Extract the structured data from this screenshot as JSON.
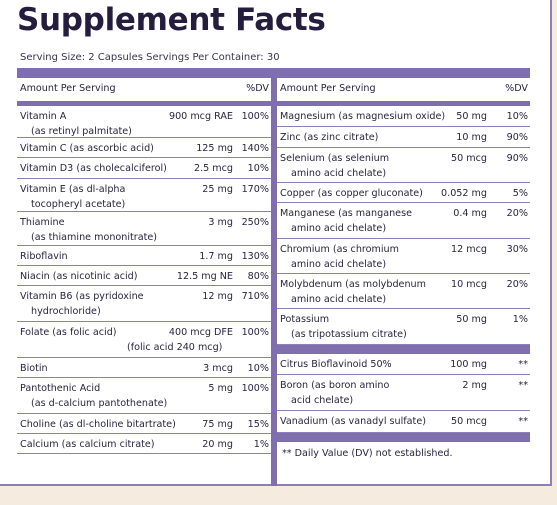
{
  "title": "Supplement Facts",
  "serving": "Serving Size: 2 Capsules    Servings Per Container: 30",
  "header": {
    "amount": "Amount Per Serving",
    "dv": "%DV"
  },
  "left": [
    {
      "name": "Vitamin A",
      "amount": "900 mcg RAE",
      "dv": "100%",
      "sub": "(as retinyl palmitate)",
      "h": 32
    },
    {
      "name": "Vitamin C (as ascorbic acid)",
      "amount": "125 mg",
      "dv": "140%",
      "h": 20
    },
    {
      "name": "Vitamin D3 (as cholecalciferol)",
      "amount": "2.5 mcg",
      "dv": "10%",
      "h": 21
    },
    {
      "name": "Vitamin E (as dl-alpha",
      "amount": "25 mg",
      "dv": "170%",
      "sub": "tocopheryl acetate)",
      "h": 33
    },
    {
      "name": "Thiamine",
      "amount": "3 mg",
      "dv": "250%",
      "sub": "(as thiamine mononitrate)",
      "h": 34
    },
    {
      "name": "Riboflavin",
      "amount": "1.7 mg",
      "dv": "130%",
      "h": 20
    },
    {
      "name": "Niacin (as nicotinic acid)",
      "amount": "12.5 mg NE",
      "dv": "80%",
      "h": 20
    },
    {
      "name": "Vitamin B6 (as pyridoxine",
      "amount": "12 mg",
      "dv": "710%",
      "sub": "hydrochloride)",
      "h": 36
    },
    {
      "name": "Folate (as folic acid)",
      "amount": "400 mcg DFE",
      "dv": "100%",
      "sub": "(folic acid 240 mcg)",
      "subIndent": "far",
      "h": 36
    },
    {
      "name": "Biotin",
      "amount": "3 mcg",
      "dv": "10%",
      "h": 20
    },
    {
      "name": "Pantothenic Acid",
      "amount": "5 mg",
      "dv": "100%",
      "sub": "(as d-calcium pantothenate)",
      "h": 36
    },
    {
      "name": "Choline (as dl-choline bitartrate)",
      "amount": "75 mg",
      "dv": "15%",
      "h": 20
    },
    {
      "name": "Calcium (as calcium citrate)",
      "amount": "20 mg",
      "dv": "1%",
      "h": 20
    }
  ],
  "right": [
    {
      "name": "Magnesium (as magnesium oxide)",
      "amount": "50 mg",
      "dv": "10%",
      "h": 21
    },
    {
      "name": "Zinc (as zinc citrate)",
      "amount": "10 mg",
      "dv": "90%",
      "h": 21
    },
    {
      "name": "Selenium (as selenium",
      "amount": "50 mcg",
      "dv": "90%",
      "sub": "amino acid chelate)",
      "h": 35
    },
    {
      "name": "Copper (as copper gluconate)",
      "amount": "0.052 mg",
      "dv": "5%",
      "h": 20
    },
    {
      "name": "Manganese (as manganese",
      "amount": "0.4 mg",
      "dv": "20%",
      "sub": "amino acid chelate)",
      "h": 36
    },
    {
      "name": "Chromium (as chromium",
      "amount": "12 mcg",
      "dv": "30%",
      "sub": "amino acid chelate)",
      "h": 35
    },
    {
      "name": "Molybdenum (as molybdenum",
      "amount": "10 mcg",
      "dv": "20%",
      "sub": "amino acid chelate)",
      "h": 35
    },
    {
      "name": "Potassium",
      "amount": "50 mg",
      "dv": "1%",
      "sub": "(as tripotassium citrate)",
      "h": 36
    }
  ],
  "right2": [
    {
      "name": "Citrus Bioflavinoid 50%",
      "amount": "100 mg",
      "dv": "**",
      "h": 21
    },
    {
      "name": "Boron (as boron amino",
      "amount": "2 mg",
      "dv": "**",
      "sub": "acid chelate)",
      "h": 36
    },
    {
      "name": "Vanadium (as vanadyl sulfate)",
      "amount": "50 mcg",
      "dv": "**",
      "h": 22
    }
  ],
  "footnote": "** Daily Value (DV) not established."
}
